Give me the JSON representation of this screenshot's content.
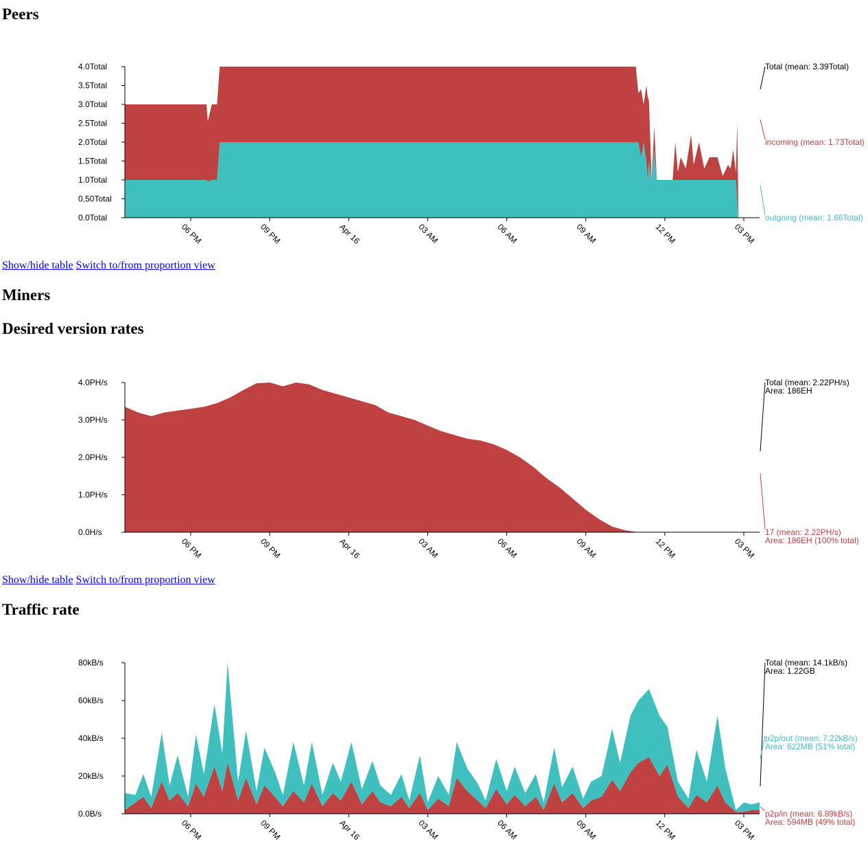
{
  "sections": {
    "peers_title": "Peers",
    "miners_title": "Miners",
    "desired_title": "Desired version rates",
    "traffic_title": "Traffic rate"
  },
  "links": {
    "show_hide": "Show/hide table",
    "switch_view": "Switch to/from proportion view"
  },
  "colors": {
    "red": "#bf4242",
    "teal": "#40bfbf",
    "axis": "#000000"
  },
  "chart_data": [
    {
      "id": "peers",
      "type": "area",
      "stacked": true,
      "x_ticks": [
        "06 PM",
        "09 PM",
        "Apr 16",
        "03 AM",
        "06 AM",
        "09 AM",
        "12 PM",
        "03 PM"
      ],
      "y_ticks": [
        "0.0Total",
        "0.50Total",
        "1.0Total",
        "1.5Total",
        "2.0Total",
        "2.5Total",
        "3.0Total",
        "3.5Total",
        "4.0Total"
      ],
      "ylim": [
        0,
        4
      ],
      "xlim": [
        15.5,
        39.6
      ],
      "series": [
        {
          "name": "outgoing",
          "color": "#40bfbf",
          "legend": "outgoing (mean: 1.66Total)",
          "x": [
            15.5,
            18.6,
            18.65,
            18.8,
            19.0,
            19.1,
            20,
            22,
            25,
            28,
            31,
            34,
            35.0,
            35.1,
            35.2,
            35.3,
            35.35,
            35.4,
            35.5,
            35.6,
            35.7,
            35.8,
            36.0,
            36.5,
            37.0,
            37.5,
            38.0,
            38.5,
            38.7,
            38.75,
            38.8,
            39.0,
            39.6
          ],
          "values": [
            1.0,
            1.0,
            0.95,
            1.0,
            1.0,
            2.0,
            2.0,
            2.0,
            2.0,
            2.0,
            2.0,
            2.0,
            2.0,
            1.6,
            2.0,
            1.5,
            1.0,
            1.5,
            1.0,
            1.8,
            1.0,
            1.0,
            1.0,
            1.0,
            1.0,
            1.0,
            1.0,
            1.0,
            1.0,
            0.5,
            0.0,
            0.0,
            0.0
          ]
        },
        {
          "name": "incoming",
          "color": "#bf4242",
          "legend": "incoming (mean: 1.73Total)",
          "x": [
            15.5,
            18.6,
            18.65,
            18.8,
            19.0,
            19.1,
            20,
            22,
            25,
            28,
            31,
            34,
            34.9,
            35.0,
            35.1,
            35.2,
            35.3,
            35.35,
            35.4,
            35.5,
            35.6,
            35.7,
            35.8,
            36.0,
            36.3,
            36.4,
            36.5,
            36.6,
            36.8,
            37.0,
            37.1,
            37.3,
            37.5,
            37.7,
            38.0,
            38.2,
            38.4,
            38.5,
            38.6,
            38.7,
            38.75,
            38.8,
            39.0,
            39.6
          ],
          "values": [
            2.0,
            2.0,
            1.6,
            2.0,
            2.0,
            2.0,
            2.0,
            2.0,
            2.0,
            2.0,
            2.0,
            2.0,
            2.0,
            1.3,
            1.8,
            1.0,
            2.0,
            2.2,
            1.6,
            0.0,
            0.6,
            0.0,
            0.0,
            0.0,
            0.0,
            1.0,
            0.2,
            0.6,
            0.3,
            1.2,
            0.4,
            1.0,
            0.3,
            0.6,
            0.6,
            0.1,
            0.4,
            0.3,
            0.8,
            0.2,
            2.0,
            0.0,
            0.0,
            0.0
          ]
        }
      ],
      "legend_total": "Total (mean: 3.39Total)"
    },
    {
      "id": "desired",
      "type": "area",
      "stacked": true,
      "x_ticks": [
        "06 PM",
        "09 PM",
        "Apr 16",
        "03 AM",
        "06 AM",
        "09 AM",
        "12 PM",
        "03 PM"
      ],
      "y_ticks": [
        "0.0H/s",
        "1.0PH/s",
        "2.0PH/s",
        "3.0PH/s",
        "4.0PH/s"
      ],
      "ylim": [
        0,
        4
      ],
      "xlim": [
        15.5,
        39.6
      ],
      "series": [
        {
          "name": "17",
          "color": "#bf4242",
          "legend": "17 (mean: 2.22PH/s)",
          "area": "Area: 186EH (100% total)",
          "x": [
            15.5,
            16.0,
            16.5,
            17.0,
            17.5,
            18.0,
            18.5,
            19.0,
            19.5,
            20.0,
            20.5,
            21.0,
            21.5,
            22.0,
            22.5,
            23.0,
            23.5,
            24.0,
            24.5,
            25.0,
            25.5,
            26.0,
            26.5,
            27.0,
            27.5,
            28.0,
            28.5,
            29.0,
            29.5,
            30.0,
            30.5,
            31.0,
            31.5,
            32.0,
            32.5,
            33.0,
            33.5,
            34.0,
            34.5,
            35.0,
            35.5,
            36.0,
            37.0,
            38.0,
            39.0,
            39.6
          ],
          "values": [
            3.35,
            3.2,
            3.1,
            3.2,
            3.25,
            3.3,
            3.35,
            3.45,
            3.6,
            3.8,
            3.98,
            4.0,
            3.9,
            4.0,
            3.95,
            3.8,
            3.7,
            3.6,
            3.5,
            3.4,
            3.2,
            3.1,
            3.0,
            2.85,
            2.7,
            2.6,
            2.5,
            2.45,
            2.35,
            2.2,
            2.0,
            1.75,
            1.45,
            1.2,
            0.9,
            0.6,
            0.35,
            0.15,
            0.05,
            0.0,
            0.0,
            0.0,
            0.0,
            0.0,
            0.0,
            0.0
          ]
        }
      ],
      "legend_total": "Total (mean: 2.22PH/s)",
      "legend_total_area": "Area: 186EH"
    },
    {
      "id": "traffic",
      "type": "area",
      "stacked": true,
      "x_ticks": [
        "06 PM",
        "09 PM",
        "Apr 16",
        "03 AM",
        "06 AM",
        "09 AM",
        "12 PM",
        "03 PM"
      ],
      "y_ticks": [
        "0.0B/s",
        "20kB/s",
        "40kB/s",
        "60kB/s",
        "80kB/s"
      ],
      "ylim": [
        0,
        80
      ],
      "xlim": [
        15.5,
        39.6
      ],
      "series": [
        {
          "name": "p2p/in",
          "color": "#bf4242",
          "legend": "p2p/in (mean: 6.89kB/s)",
          "area": "Area: 594MB (49% total)",
          "x": [
            15.5,
            15.9,
            16.2,
            16.5,
            16.9,
            17.2,
            17.5,
            17.9,
            18.2,
            18.5,
            18.9,
            19.2,
            19.4,
            19.8,
            20.1,
            20.5,
            20.8,
            21.2,
            21.5,
            21.9,
            22.3,
            22.6,
            23.0,
            23.4,
            23.7,
            24.1,
            24.5,
            24.9,
            25.2,
            25.6,
            26.0,
            26.3,
            26.7,
            27.0,
            27.4,
            27.8,
            28.1,
            28.5,
            28.9,
            29.2,
            29.6,
            30.0,
            30.3,
            30.7,
            31.1,
            31.4,
            31.8,
            32.1,
            32.5,
            32.9,
            33.2,
            33.6,
            34.0,
            34.3,
            34.7,
            35.0,
            35.4,
            35.8,
            36.1,
            36.5,
            36.9,
            37.2,
            37.6,
            38.0,
            38.3,
            38.7,
            39.0,
            39.3,
            39.6
          ],
          "values": [
            2,
            6,
            9,
            3,
            17,
            7,
            11,
            4,
            16,
            9,
            25,
            12,
            27,
            7,
            19,
            5,
            15,
            9,
            4,
            12,
            6,
            16,
            4,
            11,
            7,
            17,
            5,
            12,
            6,
            4,
            9,
            3,
            11,
            2,
            8,
            4,
            19,
            12,
            7,
            3,
            13,
            5,
            10,
            4,
            9,
            2,
            16,
            6,
            11,
            3,
            7,
            9,
            18,
            12,
            22,
            27,
            30,
            20,
            26,
            9,
            3,
            10,
            6,
            15,
            6,
            1,
            1,
            2,
            2
          ]
        },
        {
          "name": "p2p/out",
          "color": "#40bfbf",
          "legend": "p2p/out (mean: 7.22kB/s)",
          "area": "Area: 622MB (51% total)",
          "x": [
            15.5,
            15.9,
            16.2,
            16.5,
            16.9,
            17.2,
            17.5,
            17.9,
            18.2,
            18.5,
            18.9,
            19.2,
            19.4,
            19.8,
            20.1,
            20.5,
            20.8,
            21.2,
            21.5,
            21.9,
            22.3,
            22.6,
            23.0,
            23.4,
            23.7,
            24.1,
            24.5,
            24.9,
            25.2,
            25.6,
            26.0,
            26.3,
            26.7,
            27.0,
            27.4,
            27.8,
            28.1,
            28.5,
            28.9,
            29.2,
            29.6,
            30.0,
            30.3,
            30.7,
            31.1,
            31.4,
            31.8,
            32.1,
            32.5,
            32.9,
            33.2,
            33.6,
            34.0,
            34.3,
            34.7,
            35.0,
            35.4,
            35.8,
            36.1,
            36.5,
            36.9,
            37.2,
            37.6,
            38.0,
            38.3,
            38.7,
            39.0,
            39.3,
            39.6
          ],
          "values": [
            9,
            4,
            12,
            6,
            26,
            8,
            20,
            5,
            26,
            12,
            33,
            20,
            53,
            10,
            25,
            7,
            20,
            13,
            6,
            26,
            9,
            22,
            6,
            16,
            10,
            21,
            8,
            16,
            9,
            6,
            12,
            4,
            20,
            4,
            12,
            6,
            19,
            12,
            9,
            4,
            16,
            7,
            15,
            7,
            12,
            4,
            19,
            8,
            14,
            5,
            10,
            11,
            27,
            15,
            30,
            33,
            36,
            32,
            20,
            8,
            5,
            24,
            11,
            37,
            18,
            1,
            5,
            3,
            4
          ]
        }
      ],
      "legend_total": "Total (mean: 14.1kB/s)",
      "legend_total_area": "Area: 1.22GB"
    }
  ]
}
